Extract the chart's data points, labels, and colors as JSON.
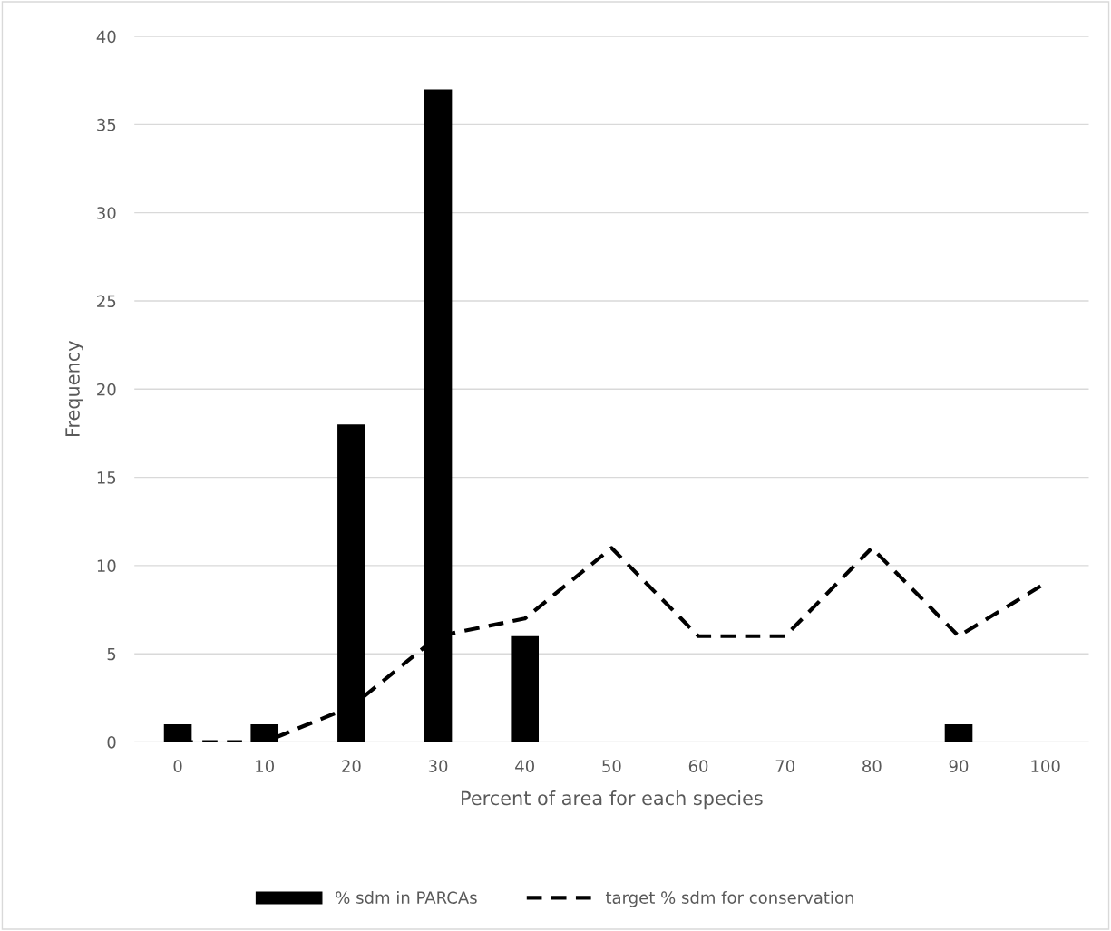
{
  "chart_data": {
    "type": "bar",
    "xlabel": "Percent of area for each species",
    "ylabel": "Frequency",
    "categories": [
      "0",
      "10",
      "20",
      "30",
      "40",
      "50",
      "60",
      "70",
      "80",
      "90",
      "100"
    ],
    "series": [
      {
        "name": "% sdm in PARCAs",
        "color": "#000000",
        "values": [
          1,
          1,
          18,
          37,
          6,
          0,
          0,
          0,
          0,
          1,
          0
        ]
      },
      {
        "name": "target % sdm for conservation",
        "color": "#000000",
        "type": "line",
        "line_style": "dashed",
        "values": [
          0,
          0,
          2,
          6,
          7,
          11,
          6,
          6,
          11,
          6,
          9
        ]
      }
    ],
    "ylim": [
      0,
      40
    ],
    "yticks": [
      0,
      5,
      10,
      15,
      20,
      25,
      30,
      35,
      40
    ],
    "grid": "y",
    "legend": "bottom",
    "marker": "none"
  }
}
